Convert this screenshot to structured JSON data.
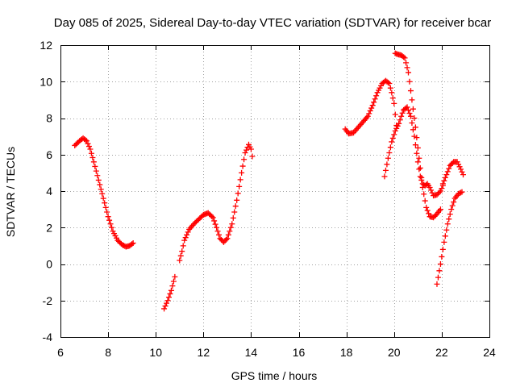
{
  "chart_data": {
    "type": "scatter",
    "title": "Day 085 of 2025, Sidereal Day-to-day VTEC variation (SDTVAR) for receiver bcar",
    "xlabel": "GPS time / hours",
    "ylabel": "SDTVAR / TECUs",
    "xlim": [
      6,
      24
    ],
    "ylim": [
      -4,
      12
    ],
    "xticks": [
      "6",
      "8",
      "10",
      "12",
      "14",
      "16",
      "18",
      "20",
      "22",
      "24"
    ],
    "yticks": [
      "-4",
      "-2",
      "0",
      "2",
      "4",
      "6",
      "8",
      "10",
      "12"
    ],
    "grid": true,
    "marker": "plus",
    "color": "#ff0000",
    "series": [
      {
        "name": "trace-1",
        "x": [
          6.6,
          6.8,
          6.95,
          7.1,
          7.25,
          7.4,
          7.6,
          7.8,
          8.0,
          8.2,
          8.4,
          8.6,
          8.75,
          8.9,
          9.05
        ],
        "y": [
          6.5,
          6.75,
          6.9,
          6.75,
          6.3,
          5.6,
          4.6,
          3.6,
          2.6,
          1.8,
          1.3,
          1.05,
          0.95,
          1.0,
          1.15
        ]
      },
      {
        "name": "trace-2",
        "x": [
          10.35,
          10.5,
          10.65,
          10.8
        ],
        "y": [
          -2.45,
          -2.0,
          -1.45,
          -0.7
        ]
      },
      {
        "name": "trace-3",
        "x": [
          11.0,
          11.1,
          11.2,
          11.4,
          11.6,
          11.8,
          12.0,
          12.2,
          12.4,
          12.55,
          12.7,
          12.85,
          13.0,
          13.2,
          13.4,
          13.6,
          13.75,
          13.9,
          14.0,
          14.05
        ],
        "y": [
          0.2,
          0.7,
          1.3,
          1.9,
          2.2,
          2.45,
          2.7,
          2.8,
          2.55,
          2.0,
          1.4,
          1.2,
          1.4,
          2.2,
          3.5,
          5.0,
          6.1,
          6.55,
          6.3,
          5.9
        ]
      },
      {
        "name": "trace-4",
        "x": [
          17.95,
          18.1,
          18.3,
          18.5,
          18.7,
          18.9,
          19.1,
          19.3,
          19.5,
          19.65,
          19.8,
          19.9,
          20.0,
          20.1
        ],
        "y": [
          7.4,
          7.15,
          7.2,
          7.5,
          7.8,
          8.1,
          8.7,
          9.4,
          9.9,
          10.05,
          9.9,
          9.4,
          8.8,
          7.6
        ]
      },
      {
        "name": "trace-5",
        "x": [
          19.6,
          19.75,
          19.9,
          20.05,
          20.2,
          20.3,
          20.4,
          20.55,
          20.7,
          20.85,
          21.0,
          21.1,
          21.2,
          21.3,
          21.4,
          21.5,
          21.65,
          21.8,
          21.95,
          22.05
        ],
        "y": [
          4.8,
          5.8,
          6.7,
          7.3,
          7.7,
          8.1,
          8.45,
          8.6,
          8.1,
          7.0,
          5.6,
          4.8,
          4.4,
          4.3,
          4.4,
          4.2,
          3.75,
          3.8,
          4.0,
          4.3
        ]
      },
      {
        "name": "trace-6",
        "x": [
          20.05,
          20.15,
          20.3,
          20.45,
          20.6,
          20.75,
          20.9,
          21.05,
          21.2,
          21.35,
          21.5,
          21.65,
          21.8,
          21.95
        ],
        "y": [
          11.55,
          11.5,
          11.45,
          11.3,
          10.5,
          9.0,
          7.5,
          5.8,
          4.2,
          3.1,
          2.6,
          2.55,
          2.75,
          3.0
        ]
      },
      {
        "name": "trace-7",
        "x": [
          22.05,
          22.2,
          22.35,
          22.5,
          22.65,
          22.8,
          22.9
        ],
        "y": [
          4.4,
          4.9,
          5.4,
          5.6,
          5.6,
          5.2,
          4.9
        ]
      },
      {
        "name": "trace-8",
        "x": [
          21.8,
          21.95,
          22.1,
          22.25,
          22.4,
          22.55,
          22.7,
          22.85
        ],
        "y": [
          -1.1,
          0.0,
          1.2,
          2.2,
          3.0,
          3.6,
          3.85,
          3.95
        ]
      }
    ]
  }
}
